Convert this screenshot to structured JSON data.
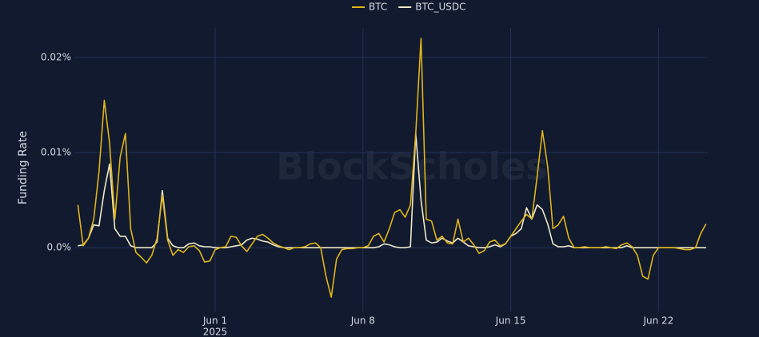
{
  "chart_data": {
    "type": "line",
    "y_label": "Funding Rate",
    "watermark": "BlockScholes",
    "x_year": "2025",
    "x": [
      "2025-05-25T12:00",
      "2025-05-25T18:00",
      "2025-05-26T00:00",
      "2025-05-26T06:00",
      "2025-05-26T12:00",
      "2025-05-26T18:00",
      "2025-05-27T00:00",
      "2025-05-27T06:00",
      "2025-05-27T12:00",
      "2025-05-27T18:00",
      "2025-05-28T00:00",
      "2025-05-28T06:00",
      "2025-05-28T12:00",
      "2025-05-28T18:00",
      "2025-05-29T00:00",
      "2025-05-29T06:00",
      "2025-05-29T12:00",
      "2025-05-29T18:00",
      "2025-05-30T00:00",
      "2025-05-30T06:00",
      "2025-05-30T12:00",
      "2025-05-30T18:00",
      "2025-05-31T00:00",
      "2025-05-31T06:00",
      "2025-05-31T12:00",
      "2025-05-31T18:00",
      "2025-06-01T00:00",
      "2025-06-01T06:00",
      "2025-06-01T12:00",
      "2025-06-01T18:00",
      "2025-06-02T00:00",
      "2025-06-02T06:00",
      "2025-06-02T12:00",
      "2025-06-02T18:00",
      "2025-06-03T00:00",
      "2025-06-03T06:00",
      "2025-06-03T12:00",
      "2025-06-03T18:00",
      "2025-06-04T00:00",
      "2025-06-04T06:00",
      "2025-06-04T12:00",
      "2025-06-04T18:00",
      "2025-06-05T00:00",
      "2025-06-05T06:00",
      "2025-06-05T12:00",
      "2025-06-05T18:00",
      "2025-06-06T00:00",
      "2025-06-06T06:00",
      "2025-06-06T12:00",
      "2025-06-06T18:00",
      "2025-06-07T00:00",
      "2025-06-07T06:00",
      "2025-06-07T12:00",
      "2025-06-07T18:00",
      "2025-06-08T00:00",
      "2025-06-08T06:00",
      "2025-06-08T12:00",
      "2025-06-08T18:00",
      "2025-06-09T00:00",
      "2025-06-09T06:00",
      "2025-06-09T12:00",
      "2025-06-09T18:00",
      "2025-06-10T00:00",
      "2025-06-10T06:00",
      "2025-06-10T12:00",
      "2025-06-10T18:00",
      "2025-06-11T00:00",
      "2025-06-11T06:00",
      "2025-06-11T12:00",
      "2025-06-11T18:00",
      "2025-06-12T00:00",
      "2025-06-12T06:00",
      "2025-06-12T12:00",
      "2025-06-12T18:00",
      "2025-06-13T00:00",
      "2025-06-13T06:00",
      "2025-06-13T12:00",
      "2025-06-13T18:00",
      "2025-06-14T00:00",
      "2025-06-14T06:00",
      "2025-06-14T12:00",
      "2025-06-14T18:00",
      "2025-06-15T00:00",
      "2025-06-15T06:00",
      "2025-06-15T12:00",
      "2025-06-15T18:00",
      "2025-06-16T00:00",
      "2025-06-16T06:00",
      "2025-06-16T12:00",
      "2025-06-16T18:00",
      "2025-06-17T00:00",
      "2025-06-17T06:00",
      "2025-06-17T12:00",
      "2025-06-17T18:00",
      "2025-06-18T00:00",
      "2025-06-18T06:00",
      "2025-06-18T12:00",
      "2025-06-18T18:00",
      "2025-06-19T00:00",
      "2025-06-19T06:00",
      "2025-06-19T12:00",
      "2025-06-19T18:00",
      "2025-06-20T00:00",
      "2025-06-20T06:00",
      "2025-06-20T12:00",
      "2025-06-20T18:00",
      "2025-06-21T00:00",
      "2025-06-21T06:00",
      "2025-06-21T12:00",
      "2025-06-21T18:00",
      "2025-06-22T00:00",
      "2025-06-22T06:00",
      "2025-06-22T12:00",
      "2025-06-22T18:00",
      "2025-06-23T00:00",
      "2025-06-23T06:00",
      "2025-06-23T12:00",
      "2025-06-23T18:00",
      "2025-06-24T00:00",
      "2025-06-24T06:00"
    ],
    "series": [
      {
        "name": "BTC",
        "color": "#e0b419",
        "values": [
          0.0045,
          0.0002,
          0.001,
          0.003,
          0.008,
          0.0155,
          0.011,
          0.003,
          0.0095,
          0.012,
          0.002,
          -0.0005,
          -0.001,
          -0.0016,
          -0.0008,
          0.001,
          0.0055,
          0.0008,
          -0.0008,
          -0.0002,
          -0.0005,
          0.0001,
          0.0002,
          -0.0003,
          -0.0015,
          -0.0014,
          -0.0002,
          0,
          0.0001,
          0.0012,
          0.0011,
          0.0002,
          -0.0004,
          0.0004,
          0.0012,
          0.0014,
          0.001,
          0.0005,
          0.0002,
          0,
          -0.0002,
          0,
          0,
          0.0001,
          0.0004,
          0.0005,
          0,
          -0.003,
          -0.0052,
          -0.0012,
          -0.0002,
          -0.0001,
          -0.0001,
          0,
          0,
          0.0002,
          0.0012,
          0.0015,
          0.0006,
          0.002,
          0.0037,
          0.004,
          0.0032,
          0.0045,
          0.012,
          0.022,
          0.003,
          0.0028,
          0.0008,
          0.0012,
          0.0005,
          0.0004,
          0.003,
          0.0006,
          0.001,
          0.0003,
          -0.0006,
          -0.0003,
          0.0006,
          0.0008,
          0.0002,
          0.0004,
          0.0012,
          0.002,
          0.0028,
          0.0035,
          0.003,
          0.0075,
          0.0123,
          0.0085,
          0.002,
          0.0024,
          0.0033,
          0.001,
          0,
          0,
          0.0001,
          0,
          0,
          0,
          0.0001,
          0,
          -0.0001,
          0.0003,
          0.0005,
          0.0001,
          -0.0008,
          -0.003,
          -0.0033,
          -0.0008,
          0,
          0,
          0,
          0,
          -0.0001,
          -0.0002,
          -0.0002,
          0,
          0.0015,
          0.0025
        ]
      },
      {
        "name": "BTC_USDC",
        "color": "#efe9c8",
        "values": [
          0.0002,
          0.0003,
          0.001,
          0.0024,
          0.0023,
          0.006,
          0.0088,
          0.002,
          0.0012,
          0.0012,
          0.0002,
          0,
          0,
          0,
          0,
          0.0006,
          0.006,
          0.001,
          0.0002,
          0,
          0,
          0.0004,
          0.0005,
          0.0002,
          0.0001,
          0.0001,
          0,
          0,
          0,
          0.0001,
          0.0002,
          0.0003,
          0.0008,
          0.001,
          0.0009,
          0.0007,
          0.0006,
          0.0003,
          0.0001,
          0,
          0,
          0,
          0,
          0,
          0,
          0,
          0,
          0,
          0,
          0,
          0,
          0,
          0,
          0,
          0,
          0,
          0,
          0.0001,
          0.0004,
          0.0003,
          0.0001,
          0,
          0,
          0.0001,
          0.012,
          0.005,
          0.0008,
          0.0005,
          0.0006,
          0.001,
          0.0007,
          0.0005,
          0.001,
          0.0006,
          0.0002,
          0.0001,
          0,
          0,
          0.0001,
          0.0003,
          0.0001,
          0.0004,
          0.0012,
          0.0015,
          0.002,
          0.0042,
          0.003,
          0.0045,
          0.004,
          0.0025,
          0.0004,
          0.0001,
          0.0001,
          0.0002,
          0,
          0,
          0,
          0,
          0,
          0,
          0,
          0,
          0,
          0,
          0.0002,
          0,
          0,
          0,
          0,
          0,
          0,
          0,
          0,
          0,
          0,
          0,
          0,
          0,
          0,
          0
        ]
      }
    ],
    "xlim": [
      "2025-05-25T08:00",
      "2025-06-24T08:00"
    ],
    "xticks": [
      {
        "value": "2025-06-01T00:00",
        "label": "Jun 1"
      },
      {
        "value": "2025-06-08T00:00",
        "label": "Jun 8"
      },
      {
        "value": "2025-06-15T00:00",
        "label": "Jun 15"
      },
      {
        "value": "2025-06-22T00:00",
        "label": "Jun 22"
      }
    ],
    "ylim": [
      -0.0067,
      0.0231
    ],
    "yticks": [
      {
        "value": 0,
        "label": "0.0%"
      },
      {
        "value": 0.01,
        "label": "0.01%"
      },
      {
        "value": 0.02,
        "label": "0.02%"
      }
    ],
    "grid": true,
    "legend": "top"
  }
}
